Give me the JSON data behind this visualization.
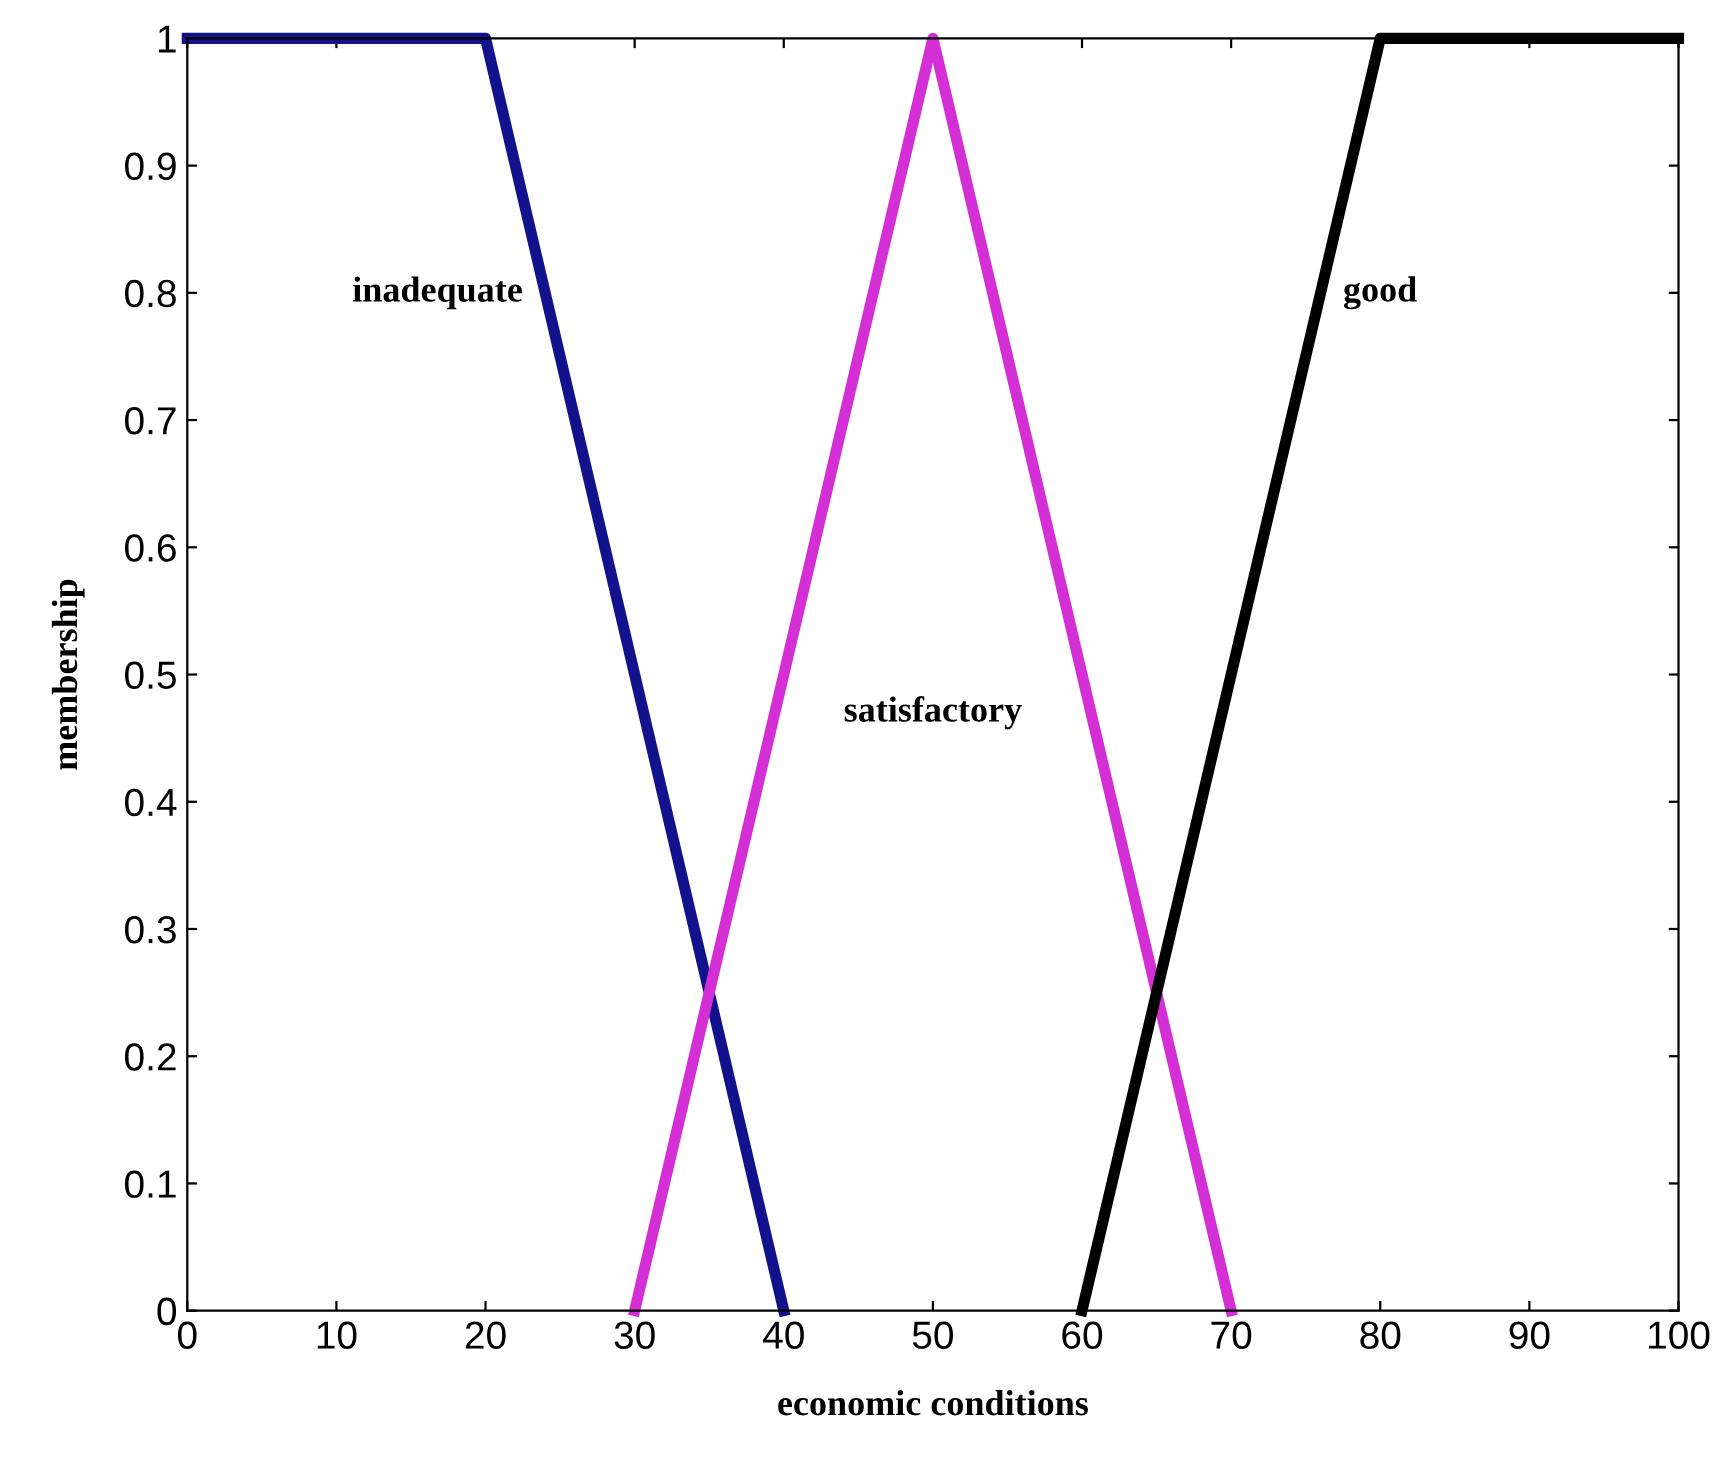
{
  "chart_data": {
    "type": "line",
    "xlabel": "economic conditions",
    "ylabel": "membership",
    "xlim": [
      0,
      100
    ],
    "ylim": [
      0,
      1
    ],
    "xticks": [
      0,
      10,
      20,
      30,
      40,
      50,
      60,
      70,
      80,
      90,
      100
    ],
    "yticks": [
      0,
      0.1,
      0.2,
      0.3,
      0.4,
      0.5,
      0.6,
      0.7,
      0.8,
      0.9,
      1
    ],
    "grid": false,
    "legend": false,
    "marker": "none",
    "line_style": "solid",
    "series": [
      {
        "name": "inadequate",
        "color": "#12128c",
        "x": [
          0,
          20,
          40
        ],
        "values": [
          1,
          1,
          0
        ]
      },
      {
        "name": "satisfactory",
        "color": "#d42fd4",
        "x": [
          30,
          50,
          70
        ],
        "values": [
          0,
          1,
          0
        ]
      },
      {
        "name": "good",
        "color": "#000000",
        "x": [
          60,
          80,
          100
        ],
        "values": [
          0,
          1,
          1
        ]
      }
    ]
  }
}
